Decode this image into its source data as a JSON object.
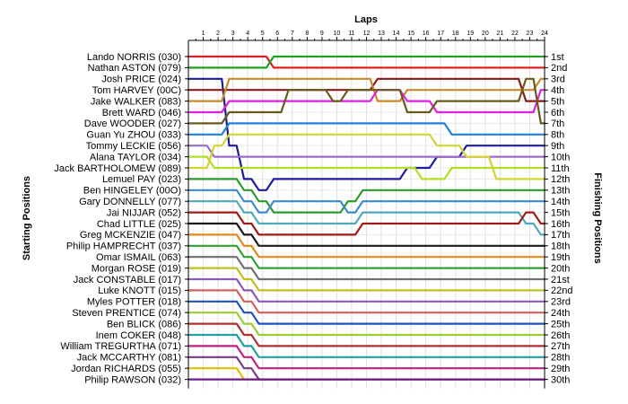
{
  "chart_data": {
    "type": "line",
    "title": "",
    "xlabel": "Laps",
    "ylabel_left": "Starting Positions",
    "ylabel_right": "Finishing Positions",
    "laps": [
      1,
      2,
      3,
      4,
      5,
      6,
      7,
      8,
      9,
      10,
      11,
      12,
      13,
      14,
      15,
      16,
      17,
      18,
      19,
      20,
      21,
      22,
      23,
      24
    ],
    "grid": true,
    "start_labels": [
      "Lando NORRIS (030)",
      "Nathan ASTON (079)",
      "Josh PRICE (024)",
      "Tom HARVEY (00C)",
      "Jake WALKER (083)",
      "Brett WARD (046)",
      "Dave WOODER (027)",
      "Guan Yu ZHOU (033)",
      "Tommy LECKIE (056)",
      "Alana TAYLOR (034)",
      "Jack BARTHOLOMEW (089)",
      "Lemuel PAY (023)",
      "Ben HINGELEY (00O)",
      "Gary DONNELLY (077)",
      "Jai NIJJAR (052)",
      "Chad LITTLE (025)",
      "Greg MCKENZIE (047)",
      "Philip HAMPRECHT (037)",
      "Omar ISMAIL (063)",
      "Morgan ROSE (019)",
      "Jack CONSTABLE (017)",
      "Luke KNOTT (015)",
      "Myles POTTER (018)",
      "Steven PRENTICE (074)",
      "Ben BLICK (086)",
      "Inem COKER (048)",
      "William TREGURTHA (071)",
      "Jack MCCARTHY (081)",
      "Jordan RICHARDS (055)",
      "Philip RAWSON (032)"
    ],
    "finish_labels": [
      "1st",
      "2nd",
      "3rd",
      "4th",
      "5th",
      "6th",
      "7th",
      "8th",
      "9th",
      "10th",
      "11th",
      "12th",
      "13th",
      "14th",
      "15th",
      "16th",
      "17th",
      "18th",
      "19th",
      "20th",
      "21st",
      "22nd",
      "23rd",
      "24th",
      "25th",
      "26th",
      "27th",
      "28th",
      "29th",
      "30th"
    ],
    "series": [
      {
        "color": "#e02020",
        "start": 1,
        "positions": [
          1,
          1,
          1,
          1,
          1,
          2,
          2,
          2,
          2,
          2,
          2,
          2,
          2,
          2,
          2,
          2,
          2,
          2,
          2,
          2,
          2,
          2,
          2,
          2
        ]
      },
      {
        "color": "#1fa01f",
        "start": 2,
        "positions": [
          2,
          2,
          2,
          2,
          2,
          1,
          1,
          1,
          1,
          1,
          1,
          1,
          1,
          1,
          1,
          1,
          1,
          1,
          1,
          1,
          1,
          1,
          1,
          1
        ]
      },
      {
        "color": "#1c1c9c",
        "start": 3,
        "positions": [
          3,
          3,
          9,
          12,
          13,
          12,
          12,
          12,
          12,
          12,
          12,
          12,
          12,
          12,
          11,
          11,
          10,
          10,
          9,
          9,
          9,
          9,
          9,
          9
        ]
      },
      {
        "color": "#8a1a1a",
        "start": 4,
        "positions": [
          4,
          4,
          4,
          4,
          4,
          4,
          4,
          4,
          4,
          4,
          4,
          4,
          3,
          3,
          3,
          3,
          3,
          3,
          3,
          3,
          3,
          3,
          5,
          5
        ]
      },
      {
        "color": "#c78a2a",
        "start": 5,
        "positions": [
          5,
          5,
          3,
          3,
          3,
          3,
          3,
          3,
          3,
          3,
          3,
          3,
          5,
          5,
          4,
          4,
          4,
          4,
          4,
          4,
          4,
          4,
          4,
          3
        ]
      },
      {
        "color": "#e020e0",
        "start": 6,
        "positions": [
          6,
          6,
          5,
          5,
          5,
          5,
          5,
          5,
          5,
          5,
          5,
          5,
          4,
          4,
          5,
          5,
          6,
          6,
          6,
          6,
          6,
          6,
          6,
          4
        ]
      },
      {
        "color": "#6a5a1a",
        "start": 7,
        "positions": [
          7,
          7,
          6,
          6,
          6,
          6,
          4,
          4,
          4,
          5,
          4,
          4,
          4,
          4,
          6,
          6,
          5,
          5,
          5,
          5,
          5,
          5,
          3,
          7
        ]
      },
      {
        "color": "#2080e0",
        "start": 8,
        "positions": [
          8,
          8,
          7,
          7,
          7,
          7,
          7,
          7,
          7,
          7,
          7,
          7,
          7,
          7,
          7,
          7,
          7,
          8,
          8,
          8,
          8,
          8,
          8,
          8
        ]
      },
      {
        "color": "#9b6cc8",
        "start": 9,
        "positions": [
          9,
          10,
          10,
          10,
          10,
          10,
          10,
          10,
          10,
          10,
          10,
          10,
          10,
          10,
          10,
          10,
          10,
          10,
          10,
          10,
          10,
          10,
          10,
          10
        ]
      },
      {
        "color": "#b0e020",
        "start": 10,
        "positions": [
          10,
          11,
          11,
          11,
          11,
          11,
          11,
          11,
          11,
          11,
          11,
          11,
          11,
          11,
          11,
          12,
          12,
          11,
          11,
          11,
          11,
          11,
          11,
          11
        ]
      },
      {
        "color": "#d4d430",
        "start": 11,
        "positions": [
          11,
          9,
          8,
          8,
          8,
          8,
          8,
          8,
          8,
          8,
          8,
          8,
          8,
          8,
          8,
          8,
          9,
          9,
          10,
          10,
          12,
          12,
          12,
          12
        ]
      },
      {
        "color": "#2a9a2a",
        "start": 12,
        "positions": [
          12,
          12,
          12,
          13,
          14,
          15,
          15,
          15,
          15,
          15,
          14,
          13,
          13,
          13,
          13,
          13,
          13,
          13,
          13,
          13,
          13,
          13,
          13,
          13
        ]
      },
      {
        "color": "#3a8ad0",
        "start": 13,
        "positions": [
          13,
          13,
          13,
          14,
          15,
          14,
          14,
          14,
          14,
          14,
          15,
          14,
          14,
          14,
          14,
          14,
          14,
          14,
          14,
          14,
          14,
          14,
          14,
          14
        ]
      },
      {
        "color": "#50a8b8",
        "start": 14,
        "positions": [
          14,
          14,
          14,
          15,
          16,
          16,
          16,
          16,
          16,
          16,
          16,
          15,
          15,
          15,
          15,
          15,
          15,
          15,
          15,
          15,
          15,
          15,
          16,
          17
        ]
      },
      {
        "color": "#a01a1a",
        "start": 15,
        "positions": [
          15,
          15,
          15,
          16,
          17,
          17,
          17,
          17,
          17,
          17,
          17,
          16,
          16,
          16,
          16,
          16,
          16,
          16,
          16,
          16,
          16,
          16,
          15,
          16
        ]
      },
      {
        "color": "#1a1a1a",
        "start": 16,
        "positions": [
          16,
          16,
          16,
          17,
          18,
          18,
          18,
          18,
          18,
          18,
          18,
          18,
          18,
          18,
          18,
          18,
          18,
          18,
          18,
          18,
          18,
          18,
          18,
          18
        ]
      },
      {
        "color": "#e08a1a",
        "start": 17,
        "positions": [
          17,
          17,
          17,
          18,
          19,
          19,
          19,
          19,
          19,
          19,
          19,
          19,
          19,
          19,
          19,
          19,
          19,
          19,
          19,
          19,
          19,
          19,
          19,
          19
        ]
      },
      {
        "color": "#30a030",
        "start": 18,
        "positions": [
          18,
          18,
          18,
          19,
          20,
          20,
          20,
          20,
          20,
          20,
          20,
          20,
          20,
          20,
          20,
          20,
          20,
          20,
          20,
          20,
          20,
          20,
          20,
          20
        ]
      },
      {
        "color": "#707070",
        "start": 19,
        "positions": [
          19,
          19,
          19,
          20,
          21,
          21,
          21,
          21,
          21,
          21,
          21,
          21,
          21,
          21,
          21,
          21,
          21,
          21,
          21,
          21,
          21,
          21,
          21,
          21
        ]
      },
      {
        "color": "#c0c020",
        "start": 20,
        "positions": [
          20,
          20,
          20,
          21,
          22,
          22,
          22,
          22,
          22,
          22,
          22,
          22,
          22,
          22,
          22,
          22,
          22,
          22,
          22,
          22,
          22,
          22,
          22,
          22
        ]
      },
      {
        "color": "#8a5ab8",
        "start": 21,
        "positions": [
          21,
          21,
          21,
          22,
          23,
          23,
          23,
          23,
          23,
          23,
          23,
          23,
          23,
          23,
          23,
          23,
          23,
          23,
          23,
          23,
          23,
          23,
          23,
          23
        ]
      },
      {
        "color": "#d06060",
        "start": 22,
        "positions": [
          22,
          22,
          22,
          23,
          24,
          24,
          24,
          24,
          24,
          24,
          24,
          24,
          24,
          24,
          24,
          24,
          24,
          24,
          24,
          24,
          24,
          24,
          24,
          24
        ]
      },
      {
        "color": "#2050c0",
        "start": 23,
        "positions": [
          23,
          23,
          23,
          24,
          25,
          25,
          25,
          25,
          25,
          25,
          25,
          25,
          25,
          25,
          25,
          25,
          25,
          25,
          25,
          25,
          25,
          25,
          25,
          25
        ]
      },
      {
        "color": "#9acd32",
        "start": 24,
        "positions": [
          24,
          24,
          24,
          25,
          26,
          26,
          26,
          26,
          26,
          26,
          26,
          26,
          26,
          26,
          26,
          26,
          26,
          26,
          26,
          26,
          26,
          26,
          26,
          26
        ]
      },
      {
        "color": "#b03030",
        "start": 25,
        "positions": [
          25,
          25,
          25,
          26,
          27,
          27,
          27,
          27,
          27,
          27,
          27,
          27,
          27,
          27,
          27,
          27,
          27,
          27,
          27,
          27,
          27,
          27,
          27,
          27
        ]
      },
      {
        "color": "#20a0a0",
        "start": 26,
        "positions": [
          26,
          26,
          26,
          27,
          28,
          28,
          28,
          28,
          28,
          28,
          28,
          28,
          28,
          28,
          28,
          28,
          28,
          28,
          28,
          28,
          28,
          28,
          28,
          28
        ]
      },
      {
        "color": "#c02080",
        "start": 27,
        "positions": [
          27,
          27,
          27,
          28,
          29,
          29,
          29,
          29,
          29,
          29,
          29,
          29,
          29,
          29,
          29,
          29,
          29,
          29,
          29,
          29,
          29,
          29,
          29,
          29
        ]
      },
      {
        "color": "#7a3a8a",
        "start": 28,
        "positions": [
          28,
          28,
          28,
          29,
          30,
          30,
          30,
          30,
          30,
          30,
          30,
          30,
          30,
          30,
          30,
          30,
          30,
          30,
          30,
          30,
          30,
          30,
          30,
          30
        ]
      },
      {
        "color": "#e0c000",
        "start": 29,
        "positions": [
          29,
          29,
          29,
          30,
          30,
          30,
          30,
          30,
          30,
          30,
          30,
          30,
          30,
          30,
          30,
          30,
          30,
          30,
          30,
          30,
          30,
          30,
          30,
          30
        ]
      },
      {
        "color": "#6a1a8a",
        "start": 30,
        "positions": [
          30,
          30,
          30,
          30,
          30,
          30,
          30,
          30,
          30,
          30,
          30,
          30,
          30,
          30,
          30,
          30,
          30,
          30,
          30,
          30,
          30,
          30,
          30,
          30
        ]
      }
    ]
  }
}
